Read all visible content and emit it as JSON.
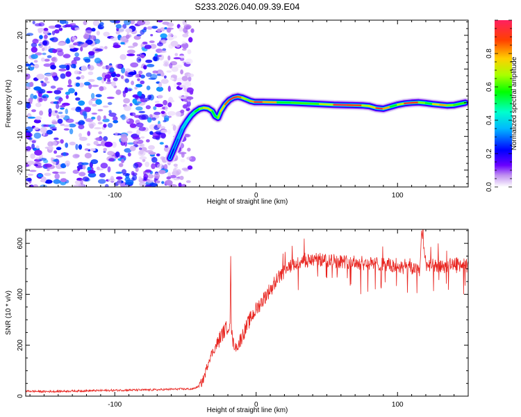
{
  "chart_data": [
    {
      "type": "heatmap",
      "title": "S233.2026.040.09.39.E04",
      "xlabel": "Height of straight line (km)",
      "ylabel": "Frequency (Hz)",
      "xlim": [
        -163,
        150
      ],
      "ylim": [
        -25,
        24.5
      ],
      "xticks": [
        -100,
        0,
        100
      ],
      "yticks": [
        -20,
        -10,
        0,
        10,
        20
      ],
      "noise_region": {
        "x_from": -163,
        "x_to": -53,
        "y_from": -25,
        "y_to": 24.5,
        "max_amplitude": 0.3
      },
      "ridge": {
        "x": [
          -61,
          -58,
          -55,
          -52,
          -49,
          -46,
          -43,
          -40,
          -37,
          -34,
          -31,
          -29,
          -27,
          -25,
          -22,
          -19,
          -16,
          -13,
          -10,
          -7,
          -4,
          -1,
          5,
          15,
          25,
          35,
          45,
          55,
          65,
          75,
          80,
          85,
          90,
          95,
          100,
          105,
          110,
          115,
          120,
          125,
          130,
          135,
          140,
          148
        ],
        "y": [
          -16.5,
          -13.5,
          -10.5,
          -7.5,
          -5.5,
          -3.8,
          -2.6,
          -1.8,
          -1.5,
          -1.7,
          -2.5,
          -4.0,
          -4.5,
          -2.5,
          -0.5,
          0.8,
          1.5,
          1.8,
          1.5,
          1.0,
          0.5,
          0.2,
          0.2,
          0.1,
          0.0,
          -0.2,
          -0.4,
          -0.6,
          -0.7,
          -0.8,
          -1.0,
          -1.6,
          -1.8,
          -1.2,
          -0.6,
          -0.2,
          0.0,
          0.1,
          -0.1,
          -0.4,
          -0.6,
          -0.8,
          -0.7,
          0.0
        ],
        "amplitude": [
          0.2,
          0.25,
          0.3,
          0.35,
          0.4,
          0.45,
          0.5,
          0.6,
          0.7,
          0.8,
          0.6,
          0.5,
          0.6,
          0.7,
          0.8,
          0.9,
          1.0,
          0.9,
          0.8,
          0.6,
          0.7,
          0.9,
          1.0,
          0.6,
          0.5,
          0.7,
          0.5,
          0.9,
          1.0,
          0.8,
          0.6,
          0.9,
          1.0,
          0.6,
          0.5,
          0.9,
          1.0,
          0.8,
          0.5,
          0.6,
          0.9,
          0.7,
          0.6,
          0.6
        ]
      },
      "colorbar": {
        "label": "Normalized spectral amplitude",
        "range": [
          0.0,
          1.0
        ],
        "ticks": [
          "0.0",
          "0.2",
          "0.4",
          "0.6",
          "0.8"
        ]
      }
    },
    {
      "type": "line",
      "xlabel": "Height of straight line (km)",
      "ylabel": "SNR (10 * v/v)",
      "xlim": [
        -163,
        150
      ],
      "ylim": [
        0,
        655
      ],
      "xticks": [
        -100,
        0,
        100
      ],
      "yticks": [
        0,
        200,
        400,
        600
      ],
      "series": [
        {
          "name": "SNR",
          "color": "#e8231e",
          "x": [
            -163,
            -150,
            -130,
            -110,
            -90,
            -70,
            -55,
            -45,
            -40,
            -37,
            -35,
            -33,
            -30,
            -27,
            -25,
            -22,
            -20,
            -18.5,
            -18,
            -17.5,
            -16,
            -14,
            -12,
            -10,
            -7,
            -4,
            0,
            5,
            10,
            15,
            20,
            25,
            30,
            40,
            50,
            60,
            70,
            80,
            90,
            100,
            110,
            116,
            117,
            120,
            130,
            140,
            150
          ],
          "y": [
            20,
            18,
            20,
            22,
            24,
            25,
            28,
            28,
            40,
            70,
            110,
            150,
            180,
            210,
            235,
            260,
            275,
            285,
            550,
            250,
            200,
            190,
            210,
            235,
            270,
            305,
            340,
            380,
            420,
            460,
            490,
            510,
            525,
            535,
            535,
            530,
            525,
            520,
            520,
            505,
            500,
            510,
            650,
            520,
            505,
            520,
            510
          ]
        }
      ]
    }
  ],
  "colors": {
    "colorbar_stops": [
      "#ffffff",
      "#c090f0",
      "#6a00ff",
      "#0000ff",
      "#00b8ff",
      "#00ffcc",
      "#00ff00",
      "#a8ff00",
      "#ffd000",
      "#ff4000",
      "#ff2060"
    ]
  }
}
